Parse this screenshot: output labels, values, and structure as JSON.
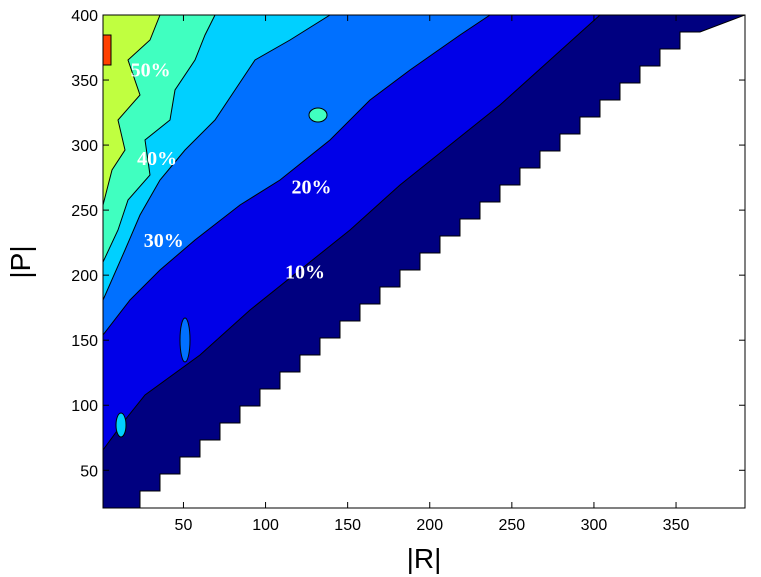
{
  "chart_data": {
    "type": "contour",
    "x_label": "|R|",
    "y_label": "|P|",
    "xlim": [
      1,
      392
    ],
    "ylim": [
      21,
      400
    ],
    "xticks": [
      50,
      100,
      150,
      200,
      250,
      300,
      350
    ],
    "yticks": [
      50,
      100,
      150,
      200,
      250,
      300,
      350,
      400
    ],
    "levels": [
      10,
      20,
      30,
      40,
      50
    ],
    "colors": [
      "#000080",
      "#0000e8",
      "#0070ff",
      "#00d0ff",
      "#40ffc0",
      "#c0ff40"
    ],
    "annotations": [
      {
        "text": "50%",
        "x": 30,
        "y": 358
      },
      {
        "text": "40%",
        "x": 34,
        "y": 290
      },
      {
        "text": "20%",
        "x": 128,
        "y": 268
      },
      {
        "text": "30%",
        "x": 38,
        "y": 227
      },
      {
        "text": "10%",
        "x": 124,
        "y": 203
      }
    ]
  }
}
